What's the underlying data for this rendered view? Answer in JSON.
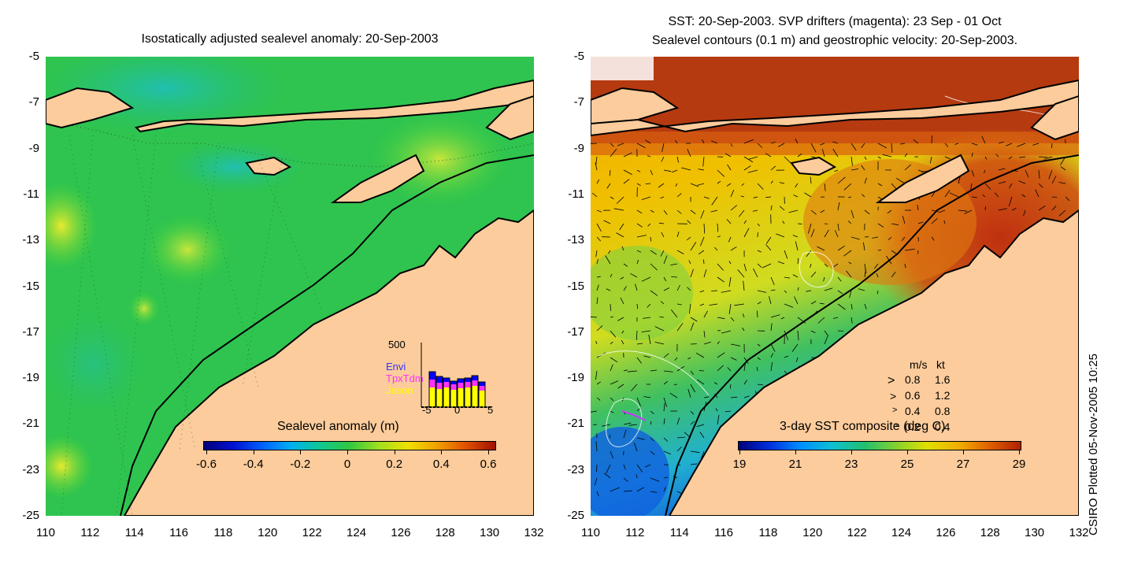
{
  "left": {
    "title": "Isostatically adjusted sealevel anomaly: 20-Sep-2003",
    "colorbar_label": "Sealevel anomaly (m)",
    "colorbar_ticks": [
      "-0.6",
      "-0.4",
      "-0.2",
      "0",
      "0.2",
      "0.4",
      "0.6"
    ],
    "inset": {
      "ymax_label": "500",
      "x_ticks": [
        "-5",
        "0",
        "5"
      ],
      "satellites": [
        {
          "name": "Envi",
          "color": "#3333ff"
        },
        {
          "name": "TpxTdm",
          "color": "#ff33ff"
        },
        {
          "name": "Jason",
          "color": "#ffff00"
        }
      ]
    }
  },
  "right": {
    "title_line1": "SST: 20-Sep-2003. SVP drifters (magenta): 23 Sep - 01 Oct",
    "title_line2": "Sealevel contours (0.1 m) and geostrophic velocity: 20-Sep-2003.",
    "colorbar_label": "3-day SST composite (deg C)",
    "colorbar_ticks": [
      "19",
      "21",
      "23",
      "25",
      "27",
      "29"
    ],
    "velocity_legend": {
      "header_ms": "m/s",
      "header_kt": "kt",
      "rows": [
        {
          "ms": "0.8",
          "kt": "1.6"
        },
        {
          "ms": "0.6",
          "kt": "1.2"
        },
        {
          "ms": "0.4",
          "kt": "0.8"
        },
        {
          "ms": "0.2",
          "kt": "0.4"
        }
      ]
    }
  },
  "axes": {
    "y_ticks": [
      "-5",
      "-7",
      "-9",
      "-11",
      "-13",
      "-15",
      "-17",
      "-19",
      "-21",
      "-23",
      "-25"
    ],
    "x_ticks": [
      "110",
      "112",
      "114",
      "116",
      "118",
      "120",
      "122",
      "124",
      "126",
      "128",
      "130",
      "132"
    ]
  },
  "credit": "CSIRO Plotted 05-Nov-2005 10:25",
  "colors": {
    "land": "#fccc9c",
    "sla_sea": "#22c24a",
    "sst_warm": "#b8340c",
    "sst_mid": "#f0b800",
    "sst_cool": "#22b0d0"
  }
}
